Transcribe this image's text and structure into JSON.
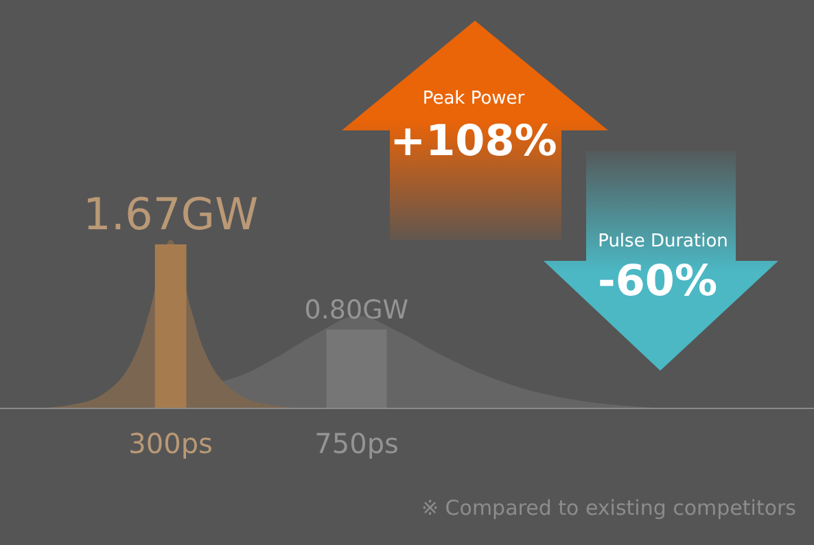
{
  "chart_data": {
    "type": "bar",
    "xlim": [
      -113,
      1857
    ],
    "xticks": [
      {
        "value": 300,
        "label": "300ps"
      },
      {
        "value": 750,
        "label": "750ps"
      }
    ],
    "tick_labels": "x",
    "grid": false,
    "series": [
      {
        "type": "area",
        "color": "#656565",
        "x": [
          25,
          200,
          350,
          450,
          550,
          650,
          750,
          850,
          950,
          1050,
          1150,
          1250,
          1350,
          1470
        ],
        "values": [
          0,
          null,
          null,
          0.3,
          0.5,
          0.75,
          0.94,
          0.78,
          0.55,
          0.35,
          0.2,
          0.1,
          0.04,
          0
        ]
      },
      {
        "type": "area",
        "color": "#7b6651",
        "x": [
          0,
          60,
          120,
          180,
          220,
          250,
          275,
          300,
          325,
          350,
          380,
          420,
          480,
          540,
          600
        ],
        "values": [
          0,
          0.03,
          0.1,
          0.3,
          0.6,
          1.0,
          null,
          1.72,
          null,
          1.0,
          0.6,
          0.3,
          0.1,
          0.03,
          0
        ]
      },
      {
        "x": [
          300,
          750
        ],
        "values": [
          1.67,
          0.8
        ],
        "colors": [
          "#a67c4f",
          "#767676"
        ],
        "value_labels": [
          "1.67GW",
          "0.80GW"
        ]
      }
    ],
    "annotations": [
      "Peak Power",
      "+108%",
      "Pulse Duration",
      "-60%",
      "※ Compared to existing competitors"
    ]
  }
}
